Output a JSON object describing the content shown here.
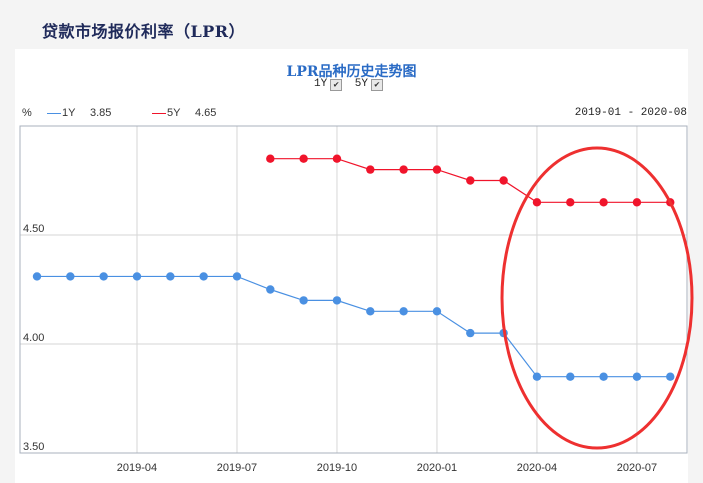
{
  "header": {
    "title": "贷款市场报价利率（LPR）"
  },
  "chart": {
    "title": "LPR品种历史走势图",
    "toggles": [
      {
        "label": "1Y",
        "checked": true
      },
      {
        "label": "5Y",
        "checked": true
      }
    ],
    "unit": "%",
    "legend": [
      {
        "name": "1Y",
        "latest": "3.85",
        "color": "#4a90e2"
      },
      {
        "name": "5Y",
        "latest": "4.65",
        "color": "#f0142b"
      }
    ],
    "date_range": "2019-01 - 2020-08",
    "annotation": "red ellipse highlighting 2020-04 to 2020-08"
  },
  "chart_data": {
    "type": "line",
    "title": "LPR品种历史走势图",
    "xlabel": "",
    "ylabel": "%",
    "x": [
      "2019-01",
      "2019-02",
      "2019-03",
      "2019-04",
      "2019-05",
      "2019-06",
      "2019-07",
      "2019-08",
      "2019-09",
      "2019-10",
      "2019-11",
      "2019-12",
      "2020-01",
      "2020-02",
      "2020-03",
      "2020-04",
      "2020-05",
      "2020-06",
      "2020-07",
      "2020-08"
    ],
    "x_tick_labels": [
      "2019-04",
      "2019-07",
      "2019-10",
      "2020-01",
      "2020-04",
      "2020-07"
    ],
    "y_tick_labels": [
      "3.50",
      "4.00",
      "4.50"
    ],
    "ylim": [
      3.5,
      5.0
    ],
    "grid": true,
    "legend_position": "top-left",
    "series": [
      {
        "name": "1Y",
        "color": "#4a90e2",
        "values": [
          4.31,
          4.31,
          4.31,
          4.31,
          4.31,
          4.31,
          4.31,
          4.25,
          4.2,
          4.2,
          4.15,
          4.15,
          4.15,
          4.05,
          4.05,
          3.85,
          3.85,
          3.85,
          3.85,
          3.85
        ]
      },
      {
        "name": "5Y",
        "color": "#f0142b",
        "values": [
          null,
          null,
          null,
          null,
          null,
          null,
          null,
          4.85,
          4.85,
          4.85,
          4.8,
          4.8,
          4.8,
          4.75,
          4.75,
          4.65,
          4.65,
          4.65,
          4.65,
          4.65
        ]
      }
    ]
  }
}
